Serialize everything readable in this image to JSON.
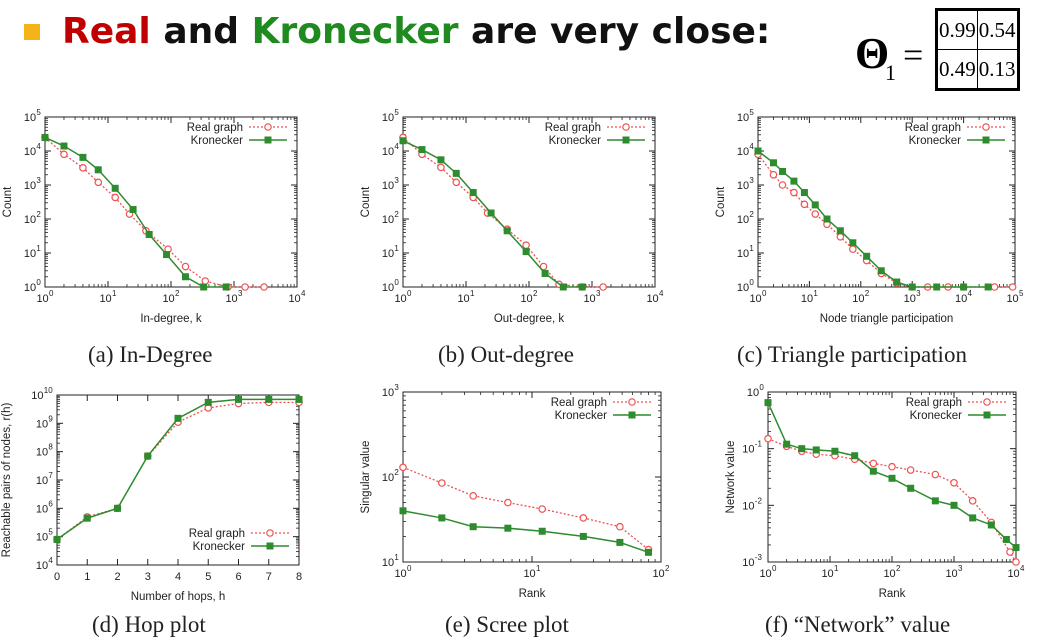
{
  "heading": {
    "bullet_color": "#F5B21B",
    "real": "Real",
    "and": "and",
    "kronecker": "Kronecker",
    "rest": "are very close:",
    "real_color": "#C00000",
    "kronecker_color": "#1F8A1F"
  },
  "theta": {
    "symbol": "Θ",
    "subscript": "1",
    "equals": "=",
    "matrix": [
      [
        "0.99",
        "0.54"
      ],
      [
        "0.49",
        "0.13"
      ]
    ]
  },
  "colors": {
    "real": "#F05050",
    "kronecker": "#2E8B2E"
  },
  "chart_data": [
    {
      "type": "line",
      "caption": "(a) In-Degree",
      "xlabel": "In-degree, k",
      "ylabel": "Count",
      "xscale": "log",
      "yscale": "log",
      "xlim": [
        1,
        10000
      ],
      "ylim": [
        1,
        100000
      ],
      "xticks": [
        1,
        10,
        100,
        1000,
        10000
      ],
      "xticklabels": [
        "10^0",
        "10^1",
        "10^2",
        "10^3",
        "10^4"
      ],
      "yticks": [
        1,
        10,
        100,
        1000,
        10000,
        100000
      ],
      "yticklabels": [
        "10^0",
        "10^1",
        "10^2",
        "10^3",
        "10^4",
        "10^5"
      ],
      "legend": "top-right",
      "series": [
        {
          "name": "Real graph",
          "marker": "circle",
          "dash": true,
          "x": [
            1,
            2,
            4,
            7,
            13,
            22,
            40,
            90,
            170,
            350,
            800,
            1500,
            3000
          ],
          "y": [
            25000,
            8000,
            3200,
            1200,
            430,
            140,
            45,
            13,
            4,
            1.5,
            1,
            1,
            1
          ]
        },
        {
          "name": "Kronecker",
          "marker": "square",
          "dash": false,
          "x": [
            1,
            2,
            4,
            7,
            13,
            25,
            45,
            85,
            170,
            330,
            750
          ],
          "y": [
            25000,
            14000,
            6500,
            2800,
            800,
            190,
            35,
            9,
            2,
            1,
            1
          ]
        }
      ]
    },
    {
      "type": "line",
      "caption": "(b) Out-degree",
      "xlabel": "Out-degree, k",
      "ylabel": "Count",
      "xscale": "log",
      "yscale": "log",
      "xlim": [
        1,
        10000
      ],
      "ylim": [
        1,
        100000
      ],
      "xticks": [
        1,
        10,
        100,
        1000,
        10000
      ],
      "xticklabels": [
        "10^0",
        "10^1",
        "10^2",
        "10^3",
        "10^4"
      ],
      "yticks": [
        1,
        10,
        100,
        1000,
        10000,
        100000
      ],
      "yticklabels": [
        "10^0",
        "10^1",
        "10^2",
        "10^3",
        "10^4",
        "10^5"
      ],
      "legend": "top-right",
      "series": [
        {
          "name": "Real graph",
          "marker": "circle",
          "dash": true,
          "x": [
            1,
            2,
            4,
            7,
            13,
            22,
            45,
            90,
            170,
            300,
            700,
            1500
          ],
          "y": [
            25000,
            8000,
            3300,
            1200,
            430,
            150,
            50,
            17,
            4,
            1.2,
            1,
            1
          ]
        },
        {
          "name": "Kronecker",
          "marker": "square",
          "dash": false,
          "x": [
            1,
            2,
            4,
            7,
            13,
            25,
            45,
            90,
            180,
            350,
            700
          ],
          "y": [
            20000,
            11000,
            5500,
            2200,
            600,
            150,
            45,
            11,
            2.5,
            1,
            1
          ]
        }
      ]
    },
    {
      "type": "line",
      "caption": "(c) Triangle participation",
      "xlabel": "Node triangle participation",
      "ylabel": "Count",
      "xscale": "log",
      "yscale": "log",
      "xlim": [
        1,
        100000
      ],
      "ylim": [
        1,
        100000
      ],
      "xticks": [
        1,
        10,
        100,
        1000,
        10000,
        100000
      ],
      "xticklabels": [
        "10^0",
        "10^1",
        "10^2",
        "10^3",
        "10^4",
        "10^5"
      ],
      "yticks": [
        1,
        10,
        100,
        1000,
        10000,
        100000
      ],
      "yticklabels": [
        "10^0",
        "10^1",
        "10^2",
        "10^3",
        "10^4",
        "10^5"
      ],
      "legend": "top-right",
      "series": [
        {
          "name": "Real graph",
          "marker": "circle",
          "dash": true,
          "x": [
            1,
            2,
            3,
            5,
            8,
            13,
            22,
            40,
            70,
            130,
            250,
            500,
            1000,
            2000,
            5000,
            10000,
            40000,
            90000
          ],
          "y": [
            8000,
            2000,
            1000,
            600,
            270,
            140,
            70,
            30,
            13,
            6,
            2.5,
            1.3,
            1,
            1,
            1,
            1,
            1,
            1
          ]
        },
        {
          "name": "Kronecker",
          "marker": "square",
          "dash": false,
          "x": [
            1,
            2,
            3,
            5,
            8,
            13,
            22,
            40,
            70,
            130,
            250,
            500,
            1000,
            3000,
            10000,
            30000
          ],
          "y": [
            10000,
            4500,
            2500,
            1300,
            600,
            260,
            100,
            45,
            20,
            8,
            3,
            1.4,
            1,
            1,
            1,
            1
          ]
        }
      ]
    },
    {
      "type": "line",
      "caption": "(d) Hop plot",
      "xlabel": "Number of hops, h",
      "ylabel": "Reachable pairs of nodes, r(h)",
      "xscale": "linear",
      "yscale": "log",
      "xlim": [
        0,
        8
      ],
      "ylim": [
        10000,
        10000000000
      ],
      "xticks": [
        0,
        1,
        2,
        3,
        4,
        5,
        6,
        7,
        8
      ],
      "xticklabels": [
        "0",
        "1",
        "2",
        "3",
        "4",
        "5",
        "6",
        "7",
        "8"
      ],
      "yticks": [
        10000,
        100000,
        1000000,
        10000000,
        100000000,
        1000000000,
        10000000000
      ],
      "yticklabels": [
        "10^4",
        "10^5",
        "10^6",
        "10^7",
        "10^8",
        "10^9",
        "10^10"
      ],
      "legend": "bottom-right",
      "series": [
        {
          "name": "Real graph",
          "marker": "circle",
          "dash": true,
          "x": [
            0,
            1,
            2,
            3,
            4,
            5,
            6,
            7,
            8
          ],
          "y": [
            80000,
            500000,
            1000000,
            70000000,
            1100000000,
            3500000000,
            5000000000,
            5500000000,
            5500000000
          ]
        },
        {
          "name": "Kronecker",
          "marker": "square",
          "dash": false,
          "x": [
            0,
            1,
            2,
            3,
            4,
            5,
            6,
            7,
            8
          ],
          "y": [
            80000,
            450000,
            1000000,
            70000000,
            1500000000,
            5500000000,
            7000000000,
            7000000000,
            7000000000
          ]
        }
      ]
    },
    {
      "type": "line",
      "caption": "(e) Scree plot",
      "xlabel": "Rank",
      "ylabel": "Singular value",
      "xscale": "log",
      "yscale": "log",
      "xlim": [
        1,
        100
      ],
      "ylim": [
        10,
        1000
      ],
      "xticks": [
        1,
        10,
        100
      ],
      "xticklabels": [
        "10^0",
        "10^1",
        "10^2"
      ],
      "yticks": [
        10,
        100,
        1000
      ],
      "yticklabels": [
        "10^1",
        "10^2",
        "10^3"
      ],
      "legend": "top-right",
      "series": [
        {
          "name": "Real graph",
          "marker": "circle",
          "dash": true,
          "x": [
            1,
            2,
            3.5,
            6.5,
            12,
            25,
            48,
            80
          ],
          "y": [
            130,
            85,
            60,
            50,
            42,
            33,
            26,
            14
          ]
        },
        {
          "name": "Kronecker",
          "marker": "square",
          "dash": false,
          "x": [
            1,
            2,
            3.5,
            6.5,
            12,
            25,
            48,
            80
          ],
          "y": [
            40,
            33,
            26,
            25,
            23,
            20,
            17,
            13
          ]
        }
      ]
    },
    {
      "type": "line",
      "caption": "(f) “Network” value",
      "xlabel": "Rank",
      "ylabel": "Network value",
      "xscale": "log",
      "yscale": "log",
      "xlim": [
        1,
        10000
      ],
      "ylim": [
        0.001,
        1
      ],
      "xticks": [
        1,
        10,
        100,
        1000,
        10000
      ],
      "xticklabels": [
        "10^0",
        "10^1",
        "10^2",
        "10^3",
        "10^4"
      ],
      "yticks": [
        0.001,
        0.01,
        0.1,
        1
      ],
      "yticklabels": [
        "10^-3",
        "10^-2",
        "10^-1",
        "10^0"
      ],
      "legend": "top-right",
      "series": [
        {
          "name": "Real graph",
          "marker": "circle",
          "dash": true,
          "x": [
            1,
            2,
            3.5,
            6,
            12,
            25,
            50,
            100,
            200,
            500,
            1000,
            2000,
            4000,
            8000,
            10000
          ],
          "y": [
            0.15,
            0.11,
            0.09,
            0.08,
            0.075,
            0.065,
            0.055,
            0.048,
            0.042,
            0.035,
            0.025,
            0.012,
            0.005,
            0.0015,
            0.001
          ]
        },
        {
          "name": "Kronecker",
          "marker": "square",
          "dash": false,
          "x": [
            1,
            2,
            3.5,
            6,
            12,
            25,
            50,
            100,
            200,
            500,
            1000,
            2000,
            4000,
            7000,
            10000
          ],
          "y": [
            0.65,
            0.12,
            0.1,
            0.095,
            0.09,
            0.075,
            0.04,
            0.03,
            0.02,
            0.012,
            0.01,
            0.006,
            0.0045,
            0.0025,
            0.0018
          ]
        }
      ]
    }
  ]
}
